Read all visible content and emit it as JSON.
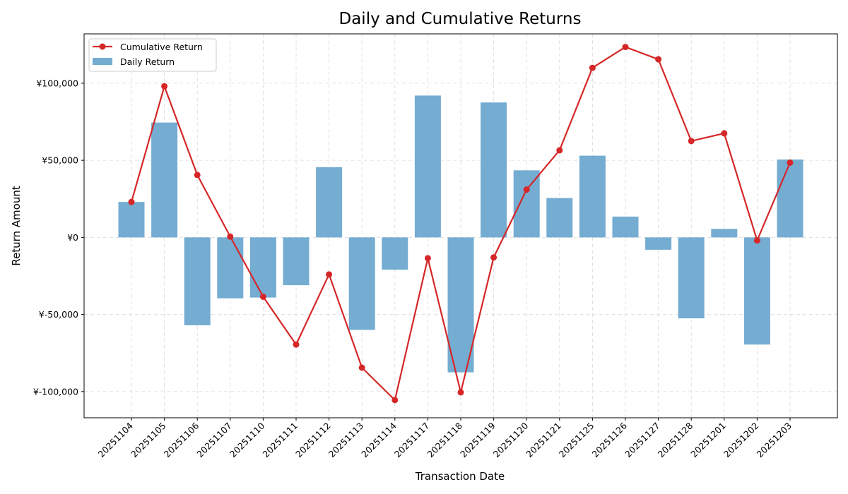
{
  "chart_data": {
    "type": "bar+line",
    "title": "Daily and Cumulative Returns",
    "xlabel": "Transaction Date",
    "ylabel": "Return Amount",
    "ylim": [
      -117000,
      132000
    ],
    "yticks": [
      -100000,
      -50000,
      0,
      50000,
      100000
    ],
    "ytick_labels": [
      "¥-100,000",
      "¥-50,000",
      "¥0",
      "¥50,000",
      "¥100,000"
    ],
    "categories": [
      "20251104",
      "20251105",
      "20251106",
      "20251107",
      "20251110",
      "20251111",
      "20251112",
      "20251113",
      "20251114",
      "20251117",
      "20251118",
      "20251119",
      "20251120",
      "20251121",
      "20251125",
      "20251126",
      "20251127",
      "20251128",
      "20251201",
      "20251202",
      "20251203"
    ],
    "grid": true,
    "legend_position": "top-left",
    "series": [
      {
        "name": "Cumulative Return",
        "kind": "line",
        "color": "#d62728",
        "marker": "circle",
        "values": [
          23000,
          98000,
          40500,
          500,
          -38500,
          -69500,
          -24000,
          -84500,
          -105500,
          -13500,
          -100500,
          -13000,
          31000,
          56500,
          110000,
          123500,
          115500,
          62500,
          67500,
          -2000,
          48500
        ]
      },
      {
        "name": "Daily Return",
        "kind": "bar",
        "color": "#74acd2",
        "values": [
          23000,
          74500,
          -57000,
          -39500,
          -39000,
          -31000,
          45500,
          -60000,
          -21000,
          92000,
          -87500,
          87500,
          43500,
          25500,
          53000,
          13500,
          -8000,
          -52500,
          5500,
          -69500,
          50500
        ]
      }
    ]
  }
}
